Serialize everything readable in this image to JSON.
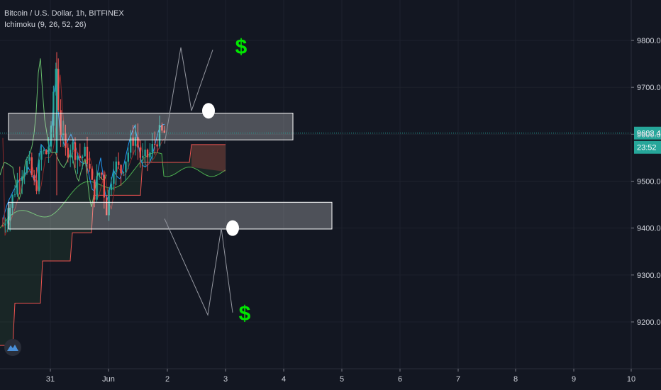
{
  "legend": {
    "symbol": "Bitcoin / U.S. Dollar, 1h, BITFINEX",
    "indicator": "Ichimoku (9, 26, 52, 26)"
  },
  "price_label": {
    "value": "9602.4",
    "countdown": "23:52"
  },
  "colors": {
    "background": "#131722",
    "grid": "#1e222d",
    "candle_up": "#26a69a",
    "candle_down": "#ef5350",
    "conversion": "#2196f3",
    "base": "#8b2a2a",
    "lagging": "#66bb6a",
    "leading_a": "#4caf50",
    "leading_b": "#ef5350",
    "last_price": "#26a69a",
    "annotation": "#00e600"
  },
  "annotations": {
    "top_symbol": "$",
    "bottom_symbol": "$"
  },
  "chart_data": {
    "type": "candlestick",
    "title": "Bitcoin / U.S. Dollar, 1h, BITFINEX",
    "x_ticks": [
      "31",
      "Jun",
      "2",
      "3",
      "4",
      "5",
      "6",
      "7",
      "8",
      "9",
      "10"
    ],
    "y_ticks": [
      "9200.0",
      "9300.0",
      "9400.0",
      "9500.0",
      "9600.0",
      "9700.0",
      "9800.0"
    ],
    "ylim": [
      9100,
      9900
    ],
    "last_price": 9602.4,
    "grid": true,
    "resistance_zone": {
      "from_price": 9588,
      "to_price": 9645
    },
    "support_zone": {
      "from_price": 9398,
      "to_price": 9455
    },
    "projections": [
      {
        "label": "$",
        "points": [
          [
            9602,
            9785
          ],
          [
            9660,
            9785
          ]
        ]
      },
      {
        "label": "$",
        "points": [
          [
            9398,
            9215
          ],
          [
            9395,
            9210
          ]
        ]
      }
    ],
    "ichimoku": {
      "conversion": 9,
      "base": 26,
      "span_b": 52,
      "displacement": 26
    }
  }
}
